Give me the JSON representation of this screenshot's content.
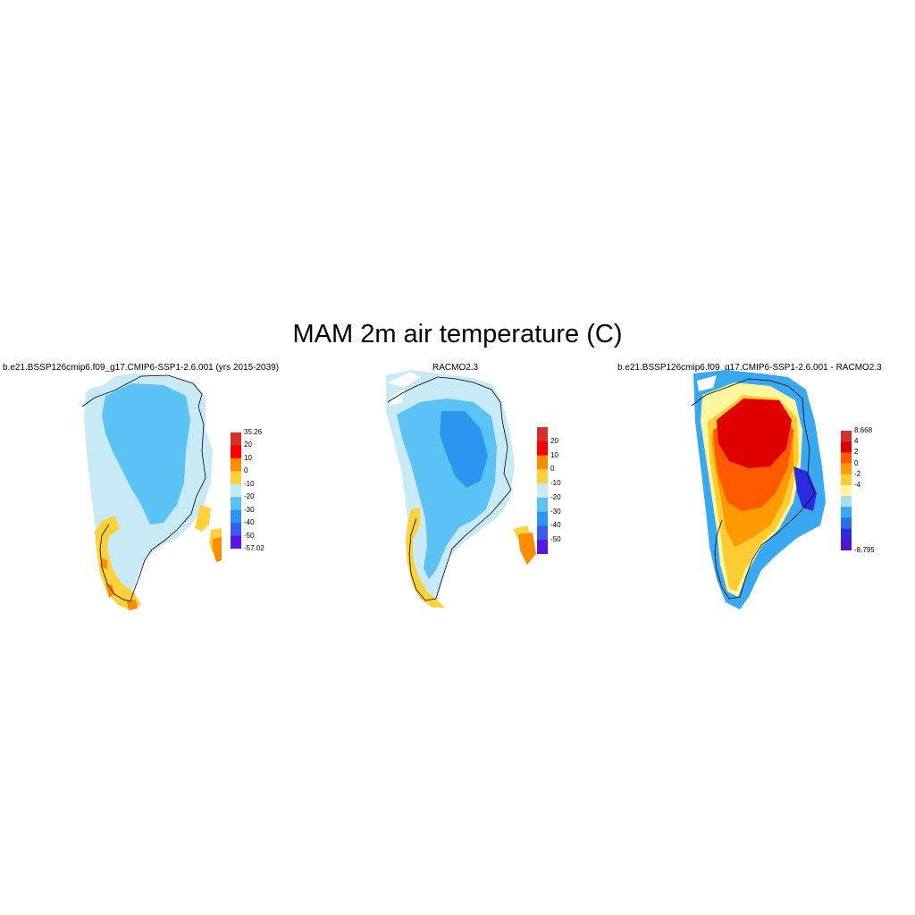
{
  "title": "MAM 2m air temperature (C)",
  "panels": [
    {
      "subtitle": "b.e21.BSSP126cmip6.f09_g17.CMIP6-SSP1-2.6.001 (yrs 2015-2039)",
      "colorbar": {
        "labels": [
          "35.26",
          "20",
          "10",
          "0",
          "-10",
          "-20",
          "-30",
          "-40",
          "-50",
          "-57.02"
        ],
        "colors": [
          "#d3312b",
          "#ff0000",
          "#ff8c00",
          "#ffd23c",
          "#c8eaf7",
          "#5ac2f5",
          "#2a96f0",
          "#3a5ce8",
          "#5a14e6"
        ]
      }
    },
    {
      "subtitle": "RACMO2.3",
      "colorbar": {
        "labels": [
          "20",
          "10",
          "0",
          "-10",
          "-20",
          "-30",
          "-40",
          "-50"
        ],
        "colors": [
          "#d3312b",
          "#ff0000",
          "#ff8c00",
          "#ffd23c",
          "#c8eaf7",
          "#5ac2f5",
          "#2a96f0",
          "#3a5ce8",
          "#5a14e6"
        ]
      }
    },
    {
      "subtitle": "b.e21.BSSP126cmip6.f09_g17.CMIP6-SSP1-2.6.001 - RACMO2.3",
      "colorbar": {
        "labels": [
          "8.668",
          "4",
          "2",
          "0",
          "-2",
          "-4",
          "-8.795"
        ],
        "colors": [
          "#d3312b",
          "#e00000",
          "#ff5a00",
          "#ff9a00",
          "#ffcc33",
          "#fff6a0",
          "#a8ddf2",
          "#3aa8f0",
          "#2a6ee8",
          "#2a2ae0",
          "#5014d2"
        ]
      }
    }
  ]
}
